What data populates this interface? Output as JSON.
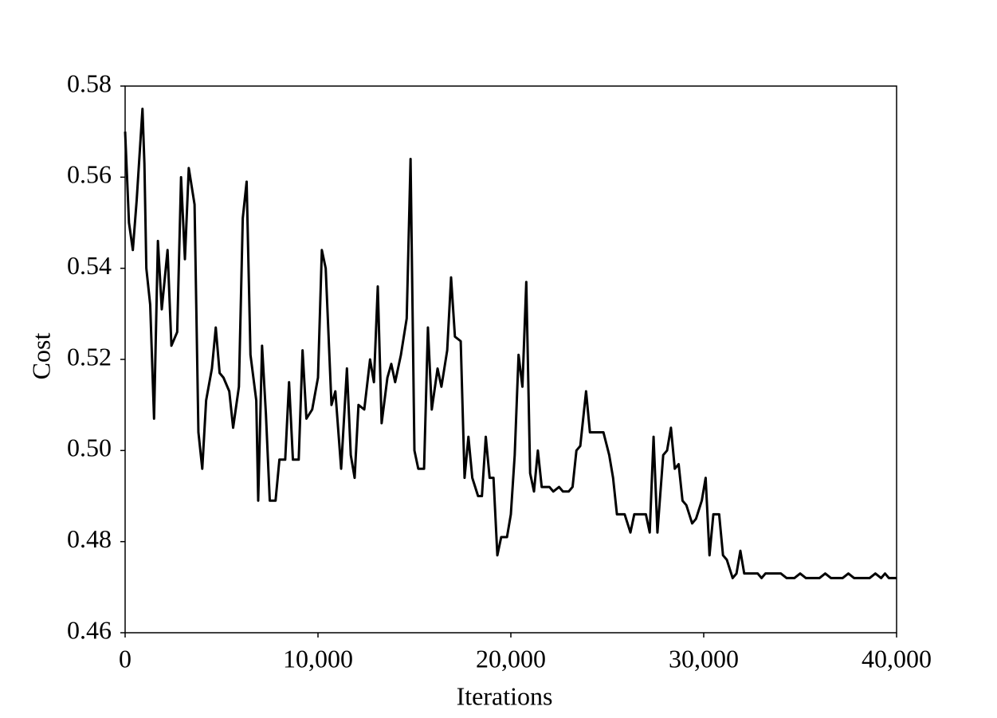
{
  "chart_data": {
    "type": "line",
    "x_label": "Iterations",
    "y_label": "Cost",
    "xlim": [
      0,
      40000
    ],
    "ylim": [
      0.46,
      0.58
    ],
    "xticks": [
      0,
      {
        "value": 10000,
        "label": "10,000"
      },
      {
        "value": 20000,
        "label": "20,000"
      },
      {
        "value": 30000,
        "label": "30,000"
      },
      {
        "value": 40000,
        "label": "40,000"
      }
    ],
    "yticks": [
      0.46,
      0.48,
      {
        "value": 0.5,
        "label": "0.50"
      },
      0.52,
      0.54,
      0.56,
      0.58
    ],
    "grid": false,
    "series": [
      {
        "color": "#000000",
        "x": [
          0,
          200,
          400,
          600,
          900,
          1000,
          1100,
          1300,
          1500,
          1700,
          1900,
          2200,
          2400,
          2700,
          2900,
          3100,
          3300,
          3600,
          3800,
          4000,
          4200,
          4500,
          4700,
          4900,
          5100,
          5400,
          5600,
          5900,
          6100,
          6300,
          6500,
          6800,
          6900,
          7100,
          7300,
          7500,
          7800,
          8000,
          8300,
          8500,
          8700,
          9000,
          9200,
          9400,
          9700,
          10000,
          10200,
          10400,
          10700,
          10900,
          11200,
          11500,
          11700,
          11900,
          12100,
          12400,
          12700,
          12900,
          13100,
          13300,
          13600,
          13800,
          14000,
          14300,
          14600,
          14800,
          15000,
          15200,
          15500,
          15700,
          15900,
          16200,
          16400,
          16700,
          16900,
          17100,
          17400,
          17600,
          17800,
          18000,
          18300,
          18500,
          18700,
          18900,
          19100,
          19300,
          19500,
          19800,
          20000,
          20200,
          20400,
          20600,
          20800,
          21000,
          21200,
          21400,
          21600,
          22000,
          22200,
          22500,
          22700,
          23000,
          23200,
          23400,
          23600,
          23900,
          24100,
          24800,
          25100,
          25300,
          25500,
          25900,
          26200,
          26400,
          27000,
          27200,
          27400,
          27600,
          27900,
          28100,
          28300,
          28500,
          28700,
          28900,
          29100,
          29400,
          29600,
          29900,
          30100,
          30300,
          30500,
          30800,
          31000,
          31200,
          31500,
          31700,
          31900,
          32100,
          32800,
          33000,
          33200,
          34000,
          34300,
          34700,
          35000,
          35300,
          36000,
          36300,
          36600,
          37200,
          37500,
          37800,
          38600,
          38900,
          39200,
          39400,
          39600,
          40000
        ],
        "values": [
          0.57,
          0.55,
          0.544,
          0.555,
          0.575,
          0.563,
          0.54,
          0.532,
          0.507,
          0.546,
          0.531,
          0.544,
          0.523,
          0.526,
          0.56,
          0.542,
          0.562,
          0.554,
          0.504,
          0.496,
          0.511,
          0.518,
          0.527,
          0.517,
          0.516,
          0.513,
          0.505,
          0.514,
          0.551,
          0.559,
          0.521,
          0.511,
          0.489,
          0.523,
          0.508,
          0.489,
          0.489,
          0.498,
          0.498,
          0.515,
          0.498,
          0.498,
          0.522,
          0.507,
          0.509,
          0.516,
          0.544,
          0.54,
          0.51,
          0.513,
          0.496,
          0.518,
          0.499,
          0.494,
          0.51,
          0.509,
          0.52,
          0.515,
          0.536,
          0.506,
          0.516,
          0.519,
          0.515,
          0.521,
          0.529,
          0.564,
          0.5,
          0.496,
          0.496,
          0.527,
          0.509,
          0.518,
          0.514,
          0.522,
          0.538,
          0.525,
          0.524,
          0.494,
          0.503,
          0.494,
          0.49,
          0.49,
          0.503,
          0.494,
          0.494,
          0.477,
          0.481,
          0.481,
          0.486,
          0.499,
          0.521,
          0.514,
          0.537,
          0.495,
          0.491,
          0.5,
          0.492,
          0.492,
          0.491,
          0.492,
          0.491,
          0.491,
          0.492,
          0.5,
          0.501,
          0.513,
          0.504,
          0.504,
          0.499,
          0.494,
          0.486,
          0.486,
          0.482,
          0.486,
          0.486,
          0.482,
          0.503,
          0.482,
          0.499,
          0.5,
          0.505,
          0.496,
          0.497,
          0.489,
          0.488,
          0.484,
          0.485,
          0.489,
          0.494,
          0.477,
          0.486,
          0.486,
          0.477,
          0.476,
          0.472,
          0.473,
          0.478,
          0.473,
          0.473,
          0.472,
          0.473,
          0.473,
          0.472,
          0.472,
          0.473,
          0.472,
          0.472,
          0.473,
          0.472,
          0.472,
          0.473,
          0.472,
          0.472,
          0.473,
          0.472,
          0.473,
          0.472,
          0.472
        ]
      }
    ]
  }
}
